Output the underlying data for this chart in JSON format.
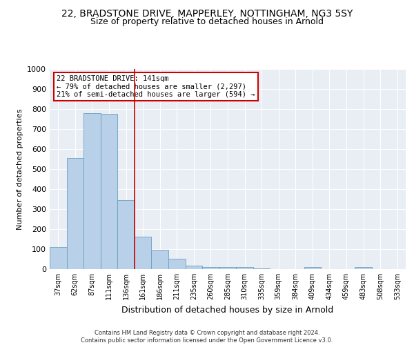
{
  "title1": "22, BRADSTONE DRIVE, MAPPERLEY, NOTTINGHAM, NG3 5SY",
  "title2": "Size of property relative to detached houses in Arnold",
  "xlabel": "Distribution of detached houses by size in Arnold",
  "ylabel": "Number of detached properties",
  "categories": [
    "37sqm",
    "62sqm",
    "87sqm",
    "111sqm",
    "136sqm",
    "161sqm",
    "186sqm",
    "211sqm",
    "235sqm",
    "260sqm",
    "285sqm",
    "310sqm",
    "335sqm",
    "359sqm",
    "384sqm",
    "409sqm",
    "434sqm",
    "459sqm",
    "483sqm",
    "508sqm",
    "533sqm"
  ],
  "values": [
    112,
    555,
    778,
    775,
    345,
    163,
    98,
    53,
    18,
    12,
    10,
    10,
    5,
    0,
    0,
    10,
    0,
    0,
    10,
    0,
    0
  ],
  "bar_color": "#b8d0e8",
  "bar_edge_color": "#6a9fc0",
  "highlight_line_color": "#cc0000",
  "annotation_text": "22 BRADSTONE DRIVE: 141sqm\n← 79% of detached houses are smaller (2,297)\n21% of semi-detached houses are larger (594) →",
  "annotation_box_color": "#ffffff",
  "annotation_box_edge_color": "#cc0000",
  "ylim": [
    0,
    1000
  ],
  "yticks": [
    0,
    100,
    200,
    300,
    400,
    500,
    600,
    700,
    800,
    900,
    1000
  ],
  "bg_color": "#e8eef4",
  "footer_text": "Contains HM Land Registry data © Crown copyright and database right 2024.\nContains public sector information licensed under the Open Government Licence v3.0.",
  "title1_fontsize": 10,
  "title2_fontsize": 9
}
